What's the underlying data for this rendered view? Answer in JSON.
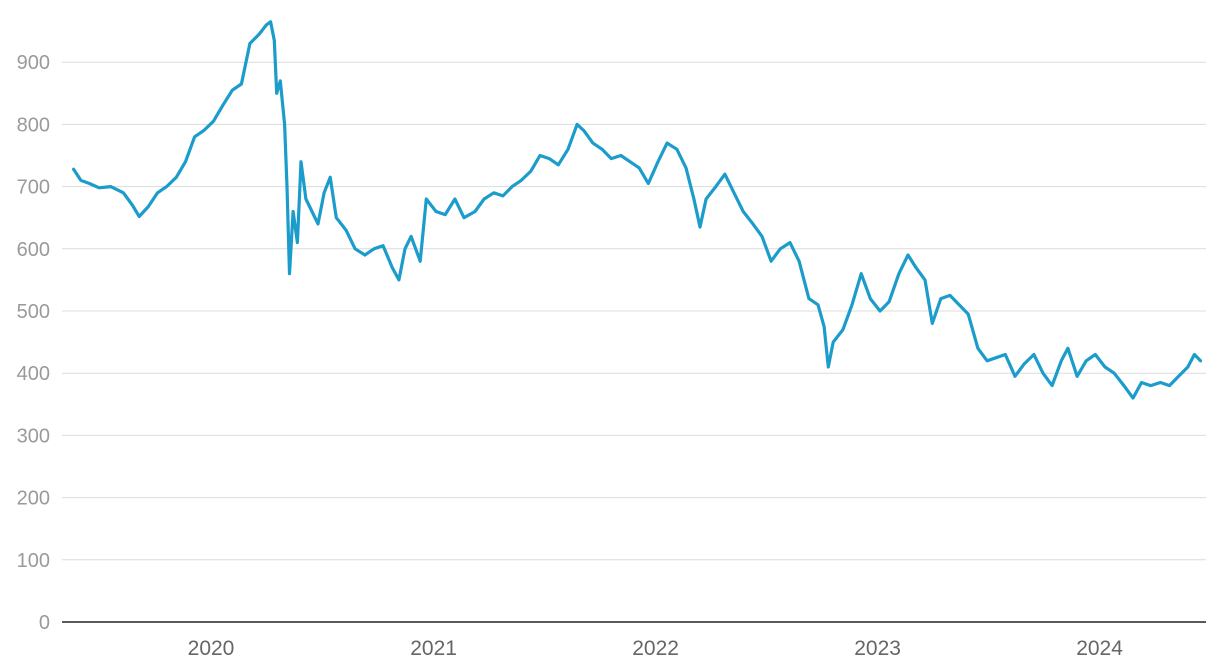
{
  "chart_data": {
    "type": "line",
    "title": "",
    "xlabel": "",
    "ylabel": "",
    "ylim": [
      0,
      1000
    ],
    "yticks": [
      0,
      100,
      200,
      300,
      400,
      500,
      600,
      700,
      800,
      900
    ],
    "xlim": [
      "2019-05-01",
      "2024-06-24"
    ],
    "xticks": [
      {
        "label": "2020",
        "date": "2020-01-01"
      },
      {
        "label": "2021",
        "date": "2021-01-01"
      },
      {
        "label": "2022",
        "date": "2022-01-01"
      },
      {
        "label": "2023",
        "date": "2023-01-01"
      },
      {
        "label": "2024",
        "date": "2024-01-01"
      }
    ],
    "grid": true,
    "legend": "none",
    "colors": {
      "line": "#1b9ccb",
      "grid": "#dcdcdc",
      "axis": "#222222"
    },
    "series": [
      {
        "points": [
          [
            "2019-05-20",
            728
          ],
          [
            "2019-06-01",
            710
          ],
          [
            "2019-06-15",
            705
          ],
          [
            "2019-07-01",
            698
          ],
          [
            "2019-07-20",
            700
          ],
          [
            "2019-08-10",
            690
          ],
          [
            "2019-08-25",
            670
          ],
          [
            "2019-09-05",
            652
          ],
          [
            "2019-09-20",
            668
          ],
          [
            "2019-10-05",
            690
          ],
          [
            "2019-10-20",
            700
          ],
          [
            "2019-11-05",
            715
          ],
          [
            "2019-11-20",
            740
          ],
          [
            "2019-12-05",
            780
          ],
          [
            "2019-12-20",
            790
          ],
          [
            "2020-01-05",
            805
          ],
          [
            "2020-01-20",
            830
          ],
          [
            "2020-02-05",
            855
          ],
          [
            "2020-02-20",
            865
          ],
          [
            "2020-03-05",
            930
          ],
          [
            "2020-03-20",
            945
          ],
          [
            "2020-04-01",
            960
          ],
          [
            "2020-04-08",
            965
          ],
          [
            "2020-04-14",
            935
          ],
          [
            "2020-04-18",
            850
          ],
          [
            "2020-04-24",
            870
          ],
          [
            "2020-05-01",
            800
          ],
          [
            "2020-05-05",
            700
          ],
          [
            "2020-05-09",
            560
          ],
          [
            "2020-05-15",
            660
          ],
          [
            "2020-05-22",
            610
          ],
          [
            "2020-05-28",
            740
          ],
          [
            "2020-06-05",
            680
          ],
          [
            "2020-06-15",
            660
          ],
          [
            "2020-06-25",
            640
          ],
          [
            "2020-07-05",
            690
          ],
          [
            "2020-07-15",
            715
          ],
          [
            "2020-07-25",
            650
          ],
          [
            "2020-08-10",
            630
          ],
          [
            "2020-08-25",
            600
          ],
          [
            "2020-09-10",
            590
          ],
          [
            "2020-09-25",
            600
          ],
          [
            "2020-10-10",
            605
          ],
          [
            "2020-10-25",
            570
          ],
          [
            "2020-11-05",
            550
          ],
          [
            "2020-11-15",
            600
          ],
          [
            "2020-11-25",
            620
          ],
          [
            "2020-12-10",
            580
          ],
          [
            "2020-12-20",
            680
          ],
          [
            "2021-01-05",
            660
          ],
          [
            "2021-01-20",
            655
          ],
          [
            "2021-02-05",
            680
          ],
          [
            "2021-02-20",
            650
          ],
          [
            "2021-03-10",
            660
          ],
          [
            "2021-03-25",
            680
          ],
          [
            "2021-04-10",
            690
          ],
          [
            "2021-04-25",
            685
          ],
          [
            "2021-05-10",
            700
          ],
          [
            "2021-05-25",
            710
          ],
          [
            "2021-06-10",
            725
          ],
          [
            "2021-06-25",
            750
          ],
          [
            "2021-07-10",
            745
          ],
          [
            "2021-07-25",
            735
          ],
          [
            "2021-08-10",
            760
          ],
          [
            "2021-08-25",
            800
          ],
          [
            "2021-09-05",
            790
          ],
          [
            "2021-09-20",
            770
          ],
          [
            "2021-10-05",
            760
          ],
          [
            "2021-10-20",
            745
          ],
          [
            "2021-11-05",
            750
          ],
          [
            "2021-11-20",
            740
          ],
          [
            "2021-12-05",
            730
          ],
          [
            "2021-12-20",
            705
          ],
          [
            "2022-01-05",
            740
          ],
          [
            "2022-01-20",
            770
          ],
          [
            "2022-02-05",
            760
          ],
          [
            "2022-02-20",
            730
          ],
          [
            "2022-03-05",
            680
          ],
          [
            "2022-03-15",
            635
          ],
          [
            "2022-03-25",
            680
          ],
          [
            "2022-04-10",
            700
          ],
          [
            "2022-04-25",
            720
          ],
          [
            "2022-05-10",
            690
          ],
          [
            "2022-05-25",
            660
          ],
          [
            "2022-06-10",
            640
          ],
          [
            "2022-06-25",
            620
          ],
          [
            "2022-07-10",
            580
          ],
          [
            "2022-07-25",
            600
          ],
          [
            "2022-08-10",
            610
          ],
          [
            "2022-08-25",
            580
          ],
          [
            "2022-09-10",
            520
          ],
          [
            "2022-09-25",
            510
          ],
          [
            "2022-10-05",
            475
          ],
          [
            "2022-10-12",
            410
          ],
          [
            "2022-10-20",
            450
          ],
          [
            "2022-11-05",
            470
          ],
          [
            "2022-11-20",
            510
          ],
          [
            "2022-12-05",
            560
          ],
          [
            "2022-12-20",
            520
          ],
          [
            "2023-01-05",
            500
          ],
          [
            "2023-01-20",
            515
          ],
          [
            "2023-02-05",
            560
          ],
          [
            "2023-02-20",
            590
          ],
          [
            "2023-03-05",
            570
          ],
          [
            "2023-03-20",
            550
          ],
          [
            "2023-04-01",
            480
          ],
          [
            "2023-04-15",
            520
          ],
          [
            "2023-04-30",
            525
          ],
          [
            "2023-05-15",
            510
          ],
          [
            "2023-05-30",
            495
          ],
          [
            "2023-06-15",
            440
          ],
          [
            "2023-06-30",
            420
          ],
          [
            "2023-07-15",
            425
          ],
          [
            "2023-07-30",
            430
          ],
          [
            "2023-08-15",
            395
          ],
          [
            "2023-08-30",
            415
          ],
          [
            "2023-09-15",
            430
          ],
          [
            "2023-09-30",
            400
          ],
          [
            "2023-10-15",
            380
          ],
          [
            "2023-10-30",
            420
          ],
          [
            "2023-11-10",
            440
          ],
          [
            "2023-11-25",
            395
          ],
          [
            "2023-12-10",
            420
          ],
          [
            "2023-12-25",
            430
          ],
          [
            "2024-01-10",
            410
          ],
          [
            "2024-01-25",
            400
          ],
          [
            "2024-02-10",
            380
          ],
          [
            "2024-02-25",
            360
          ],
          [
            "2024-03-10",
            385
          ],
          [
            "2024-03-25",
            380
          ],
          [
            "2024-04-10",
            385
          ],
          [
            "2024-04-25",
            380
          ],
          [
            "2024-05-10",
            395
          ],
          [
            "2024-05-25",
            410
          ],
          [
            "2024-06-05",
            430
          ],
          [
            "2024-06-15",
            420
          ]
        ]
      }
    ]
  }
}
